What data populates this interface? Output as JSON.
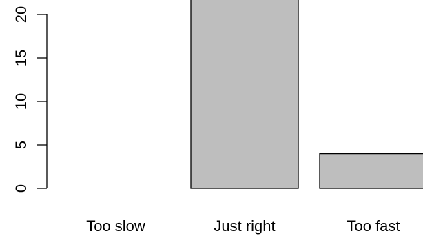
{
  "chart_data": {
    "type": "bar",
    "categories": [
      "Too slow",
      "Just right",
      "Too fast"
    ],
    "values": [
      0,
      22,
      4
    ],
    "yticks": [
      0,
      5,
      10,
      15,
      20
    ],
    "ytick_labels": [
      "0",
      "5",
      "10",
      "15",
      "20"
    ],
    "ylim": [
      0,
      22
    ],
    "grid": false,
    "colors": {
      "bar_fill": "#bebebe",
      "bar_stroke": "#000000"
    }
  }
}
